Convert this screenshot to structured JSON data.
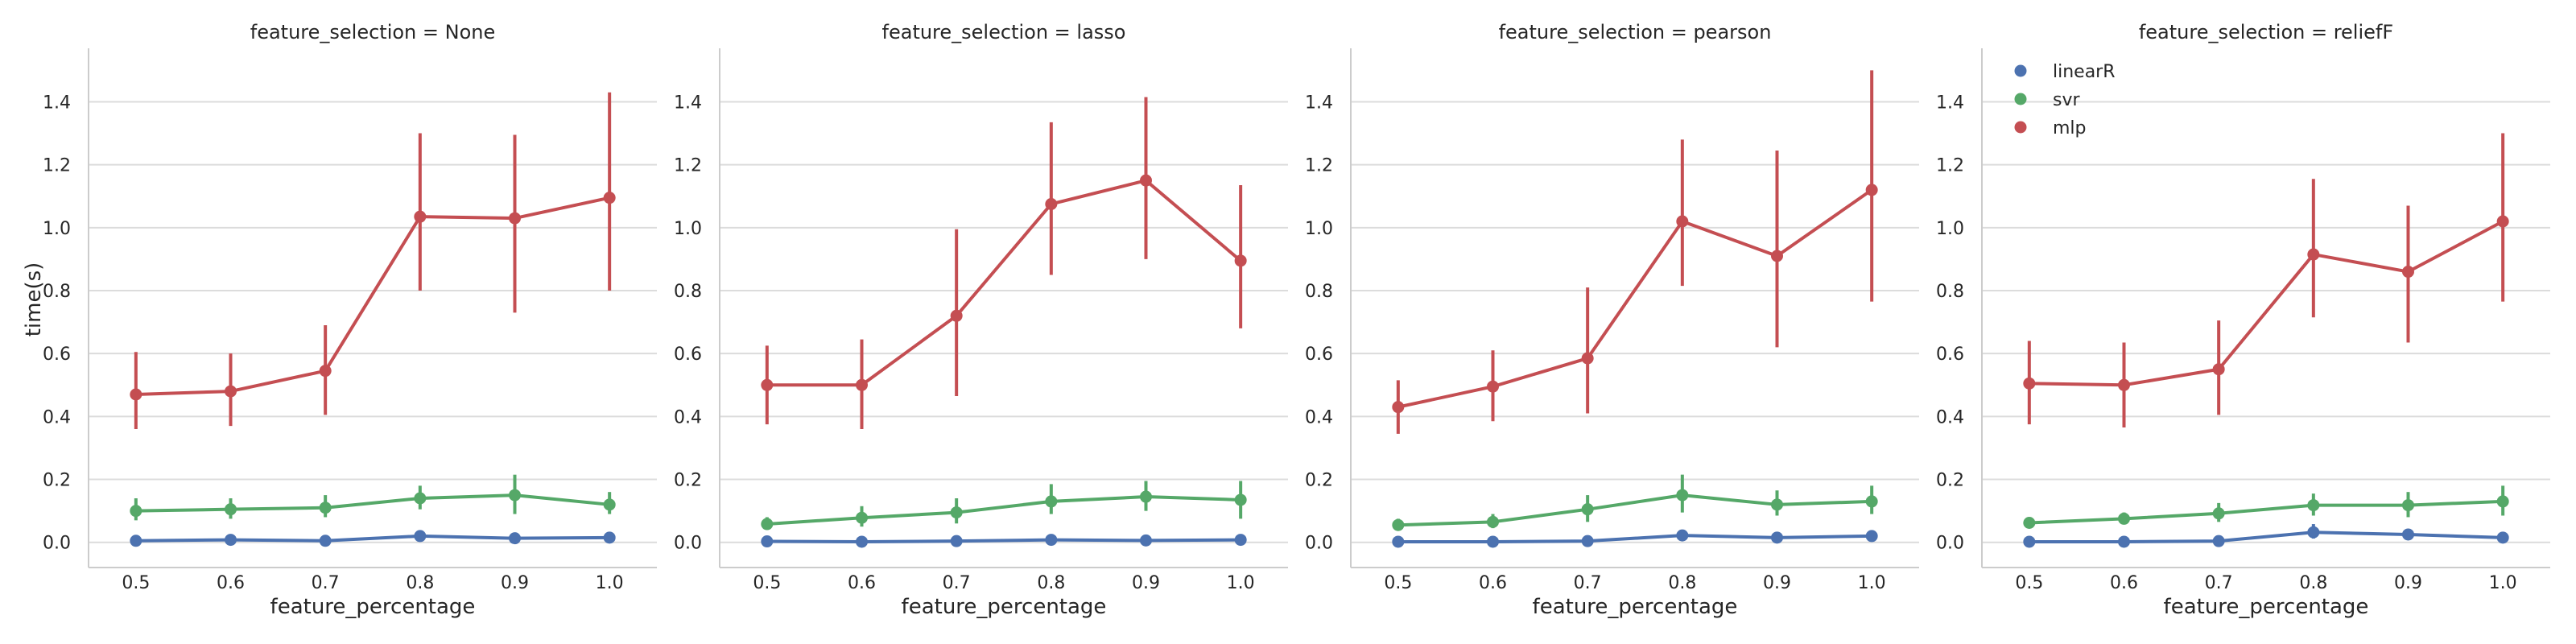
{
  "chart_data": {
    "type": "line",
    "grid": "horizontal",
    "shared_y": true,
    "ylabel": "time(s)",
    "xlabel": "feature_percentage",
    "ylim": [
      -0.08,
      1.57
    ],
    "yticks": [
      0.0,
      0.2,
      0.4,
      0.6,
      0.8,
      1.0,
      1.2,
      1.4
    ],
    "ytick_labels": [
      "0.0",
      "0.2",
      "0.4",
      "0.6",
      "0.8",
      "1.0",
      "1.2",
      "1.4"
    ],
    "categories": [
      "0.5",
      "0.6",
      "0.7",
      "0.8",
      "0.9",
      "1.0"
    ],
    "legend": {
      "placement": "top-left of last panel",
      "entries": [
        {
          "name": "linearR",
          "color": "#4c72b0"
        },
        {
          "name": "svr",
          "color": "#55a868"
        },
        {
          "name": "mlp",
          "color": "#c44e52"
        }
      ]
    },
    "panels": [
      {
        "title": "feature_selection = None",
        "series": [
          {
            "name": "linearR",
            "color": "#4c72b0",
            "values": [
              0.005,
              0.008,
              0.005,
              0.02,
              0.013,
              0.015
            ],
            "ci_low": [
              0.0,
              0.0,
              0.0,
              0.01,
              0.005,
              0.008
            ],
            "ci_high": [
              0.01,
              0.015,
              0.012,
              0.03,
              0.02,
              0.022
            ]
          },
          {
            "name": "svr",
            "color": "#55a868",
            "values": [
              0.1,
              0.105,
              0.11,
              0.14,
              0.15,
              0.12
            ],
            "ci_low": [
              0.07,
              0.075,
              0.08,
              0.105,
              0.09,
              0.09
            ],
            "ci_high": [
              0.14,
              0.14,
              0.15,
              0.18,
              0.215,
              0.16
            ]
          },
          {
            "name": "mlp",
            "color": "#c44e52",
            "values": [
              0.47,
              0.48,
              0.545,
              1.035,
              1.03,
              1.095
            ],
            "ci_low": [
              0.36,
              0.37,
              0.405,
              0.8,
              0.73,
              0.8
            ],
            "ci_high": [
              0.605,
              0.6,
              0.69,
              1.3,
              1.295,
              1.43
            ]
          }
        ]
      },
      {
        "title": "feature_selection = lasso",
        "series": [
          {
            "name": "linearR",
            "color": "#4c72b0",
            "values": [
              0.003,
              0.002,
              0.004,
              0.008,
              0.006,
              0.008
            ],
            "ci_low": [
              0.0,
              0.0,
              0.0,
              0.002,
              0.0,
              0.002
            ],
            "ci_high": [
              0.008,
              0.007,
              0.01,
              0.015,
              0.012,
              0.015
            ]
          },
          {
            "name": "svr",
            "color": "#55a868",
            "values": [
              0.058,
              0.078,
              0.095,
              0.13,
              0.145,
              0.135
            ],
            "ci_low": [
              0.04,
              0.05,
              0.06,
              0.09,
              0.1,
              0.075
            ],
            "ci_high": [
              0.08,
              0.115,
              0.14,
              0.185,
              0.195,
              0.195
            ]
          },
          {
            "name": "mlp",
            "color": "#c44e52",
            "values": [
              0.5,
              0.5,
              0.72,
              1.075,
              1.15,
              0.895
            ],
            "ci_low": [
              0.375,
              0.36,
              0.465,
              0.85,
              0.9,
              0.68
            ],
            "ci_high": [
              0.625,
              0.645,
              0.995,
              1.335,
              1.415,
              1.135
            ]
          }
        ]
      },
      {
        "title": "feature_selection = pearson",
        "series": [
          {
            "name": "linearR",
            "color": "#4c72b0",
            "values": [
              0.002,
              0.002,
              0.004,
              0.022,
              0.015,
              0.02
            ],
            "ci_low": [
              0.0,
              0.0,
              0.0,
              0.012,
              0.006,
              0.008
            ],
            "ci_high": [
              0.006,
              0.006,
              0.01,
              0.035,
              0.025,
              0.035
            ]
          },
          {
            "name": "svr",
            "color": "#55a868",
            "values": [
              0.055,
              0.065,
              0.105,
              0.15,
              0.12,
              0.13
            ],
            "ci_low": [
              0.04,
              0.045,
              0.065,
              0.095,
              0.085,
              0.09
            ],
            "ci_high": [
              0.075,
              0.09,
              0.15,
              0.215,
              0.165,
              0.18
            ]
          },
          {
            "name": "mlp",
            "color": "#c44e52",
            "values": [
              0.43,
              0.495,
              0.585,
              1.02,
              0.91,
              1.12
            ],
            "ci_low": [
              0.345,
              0.385,
              0.41,
              0.815,
              0.62,
              0.765
            ],
            "ci_high": [
              0.515,
              0.61,
              0.81,
              1.28,
              1.245,
              1.5
            ]
          }
        ]
      },
      {
        "title": "feature_selection = reliefF",
        "series": [
          {
            "name": "linearR",
            "color": "#4c72b0",
            "values": [
              0.002,
              0.002,
              0.004,
              0.032,
              0.025,
              0.015
            ],
            "ci_low": [
              0.0,
              0.0,
              0.0,
              0.012,
              0.01,
              0.008
            ],
            "ci_high": [
              0.006,
              0.006,
              0.01,
              0.058,
              0.04,
              0.025
            ]
          },
          {
            "name": "svr",
            "color": "#55a868",
            "values": [
              0.062,
              0.075,
              0.092,
              0.118,
              0.118,
              0.13
            ],
            "ci_low": [
              0.05,
              0.06,
              0.065,
              0.085,
              0.08,
              0.085
            ],
            "ci_high": [
              0.078,
              0.095,
              0.125,
              0.155,
              0.16,
              0.18
            ]
          },
          {
            "name": "mlp",
            "color": "#c44e52",
            "values": [
              0.505,
              0.5,
              0.55,
              0.915,
              0.86,
              1.02
            ],
            "ci_low": [
              0.375,
              0.365,
              0.405,
              0.715,
              0.635,
              0.765
            ],
            "ci_high": [
              0.64,
              0.635,
              0.705,
              1.155,
              1.07,
              1.3
            ]
          }
        ]
      }
    ]
  }
}
